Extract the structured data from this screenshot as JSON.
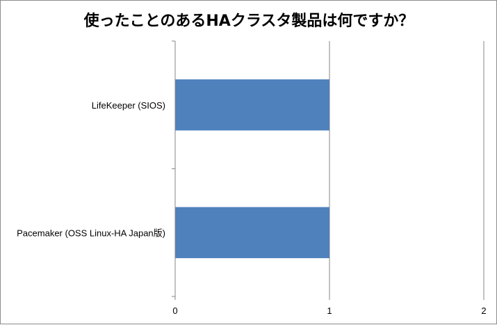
{
  "chart_data": {
    "type": "bar",
    "orientation": "horizontal",
    "title": "使ったことのあるHAクラスタ製品は何ですか？",
    "categories": [
      "LifeKeeper (SIOS)",
      "Pacemaker (OSS Linux-HA Japan版)"
    ],
    "values": [
      1,
      1
    ],
    "xlim": [
      0,
      2
    ],
    "x_ticks": [
      "0",
      "1",
      "2"
    ],
    "xlabel": "",
    "ylabel": "",
    "grid": true,
    "legend": "none",
    "bar_color": "#4f81bd"
  }
}
